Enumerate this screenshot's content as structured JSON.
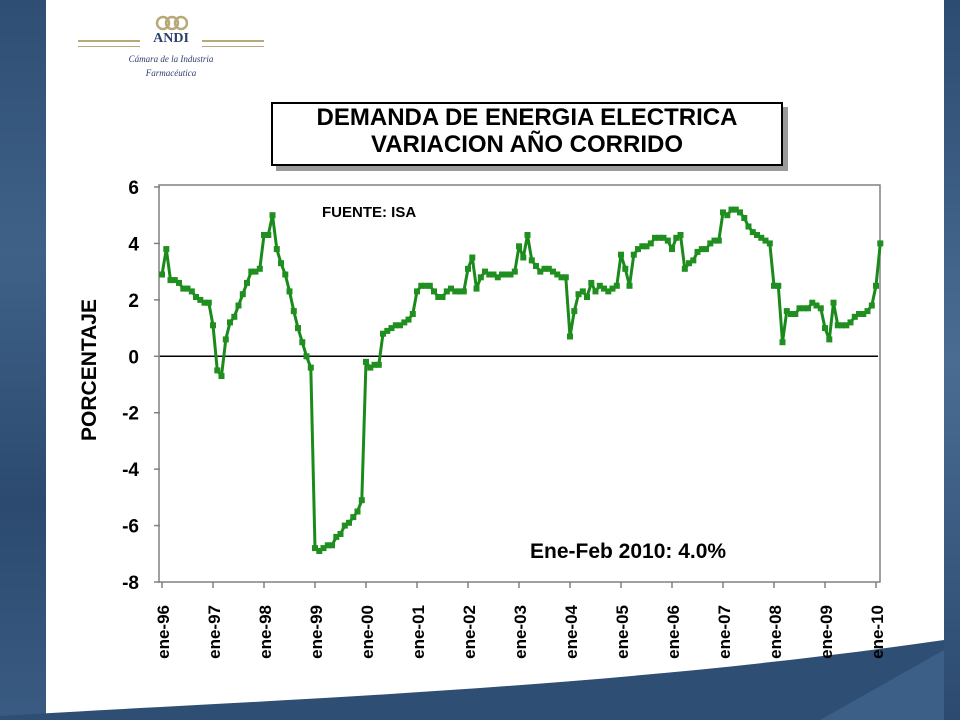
{
  "logo": {
    "name": "ANDI",
    "subtitle_line1": "Cámara de la Industria",
    "subtitle_line2": "Farmacéutica"
  },
  "chart_data": {
    "type": "line",
    "title_lines": [
      "DEMANDA DE ENERGIA ELECTRICA",
      "VARIACION AÑO CORRIDO"
    ],
    "ylabel": "PORCENTAJE",
    "xlabel": "",
    "ylim": [
      -8,
      6
    ],
    "yticks": [
      6,
      4,
      2,
      0,
      -2,
      -4,
      -6,
      -8
    ],
    "x_tick_labels": [
      "ene-96",
      "ene-97",
      "ene-98",
      "ene-99",
      "ene-00",
      "ene-01",
      "ene-02",
      "ene-03",
      "ene-04",
      "ene-05",
      "ene-06",
      "ene-07",
      "ene-08",
      "ene-09",
      "ene-10"
    ],
    "x_start": "1996-01",
    "x_frequency": "monthly",
    "grid": false,
    "annotations": [
      "FUENTE:  ISA",
      "Ene-Feb 2010:  4.0%"
    ],
    "colors": {
      "series": "#1a8a1a",
      "marker": "#1f8f1f"
    },
    "series": [
      {
        "values": [
          2.9,
          3.8,
          2.7,
          2.7,
          2.6,
          2.4,
          2.4,
          2.3,
          2.1,
          2.0,
          1.9,
          1.9,
          1.1,
          -0.5,
          -0.7,
          0.6,
          1.2,
          1.4,
          1.8,
          2.2,
          2.6,
          3.0,
          3.0,
          3.1,
          4.3,
          4.3,
          5.0,
          3.8,
          3.3,
          2.9,
          2.3,
          1.6,
          1.0,
          0.5,
          0.0,
          -0.4,
          -6.8,
          -6.9,
          -6.8,
          -6.7,
          -6.7,
          -6.4,
          -6.3,
          -6.0,
          -5.9,
          -5.7,
          -5.5,
          -5.1,
          -0.2,
          -0.4,
          -0.3,
          -0.3,
          0.8,
          0.9,
          1.0,
          1.1,
          1.1,
          1.2,
          1.3,
          1.5,
          2.3,
          2.5,
          2.5,
          2.5,
          2.3,
          2.1,
          2.1,
          2.3,
          2.4,
          2.3,
          2.3,
          2.3,
          3.1,
          3.5,
          2.4,
          2.8,
          3.0,
          2.9,
          2.9,
          2.8,
          2.9,
          2.9,
          2.9,
          3.0,
          3.9,
          3.5,
          4.3,
          3.4,
          3.2,
          3.0,
          3.1,
          3.1,
          3.0,
          2.9,
          2.8,
          2.8,
          0.7,
          1.6,
          2.2,
          2.3,
          2.1,
          2.6,
          2.3,
          2.5,
          2.4,
          2.3,
          2.4,
          2.5,
          3.6,
          3.1,
          2.5,
          3.6,
          3.8,
          3.9,
          3.9,
          4.0,
          4.2,
          4.2,
          4.2,
          4.1,
          3.8,
          4.2,
          4.3,
          3.1,
          3.3,
          3.4,
          3.7,
          3.8,
          3.8,
          4.0,
          4.1,
          4.1,
          5.1,
          5.0,
          5.2,
          5.2,
          5.1,
          4.9,
          4.6,
          4.4,
          4.3,
          4.2,
          4.1,
          4.0,
          2.5,
          2.5,
          0.5,
          1.6,
          1.5,
          1.5,
          1.7,
          1.7,
          1.7,
          1.9,
          1.8,
          1.7,
          1.0,
          0.6,
          1.9,
          1.1,
          1.1,
          1.1,
          1.2,
          1.4,
          1.5,
          1.5,
          1.6,
          1.8,
          2.5,
          4.0
        ]
      }
    ]
  }
}
